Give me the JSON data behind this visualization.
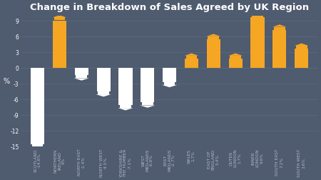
{
  "title": "Change in Breakdown of Sales Agreed by UK Region",
  "regions": [
    "SCOTLAND",
    "NORTHERN\nIRELAND",
    "NORTH EAST",
    "NORTH WEST",
    "YORKSHIRE &\nTHE HUMBER",
    "WEST\nMIDLANDS",
    "EAST\nMIDLANDS",
    "WALES",
    "EAST OF\nENGLAND",
    "OUTER\nLONDON",
    "INNER\nLONDON",
    "SOUTH EAST",
    "SOUTH WEST"
  ],
  "pcts": [
    "-14.6%",
    "9%",
    "-1.4%",
    "-4.5%",
    "-7.1%",
    "-6.6%",
    "-2.7%",
    "1.7%",
    "5.4%",
    "1.7%",
    "9.6%",
    "7.2%",
    "3.6%"
  ],
  "values": [
    -14.6,
    9.0,
    -1.4,
    -4.5,
    -7.1,
    -6.6,
    -2.7,
    1.7,
    5.4,
    1.7,
    9.6,
    7.2,
    3.6
  ],
  "bar_color_positive": "#f5a623",
  "bar_color_negative": "#ffffff",
  "background_color": "#4f5b6e",
  "title_color": "#ffffff",
  "label_color_positive": "#f5a623",
  "label_color_negative": "#b0b8c8",
  "ylabel": "%",
  "ylim": [
    -15,
    10
  ],
  "yticks": [
    -15,
    -12,
    -9,
    -6,
    -3,
    0,
    3,
    6,
    9
  ],
  "grid_color": "#5d6b80",
  "tick_color": "#ffffff",
  "title_fontsize": 9.5,
  "label_fontsize": 4.2
}
